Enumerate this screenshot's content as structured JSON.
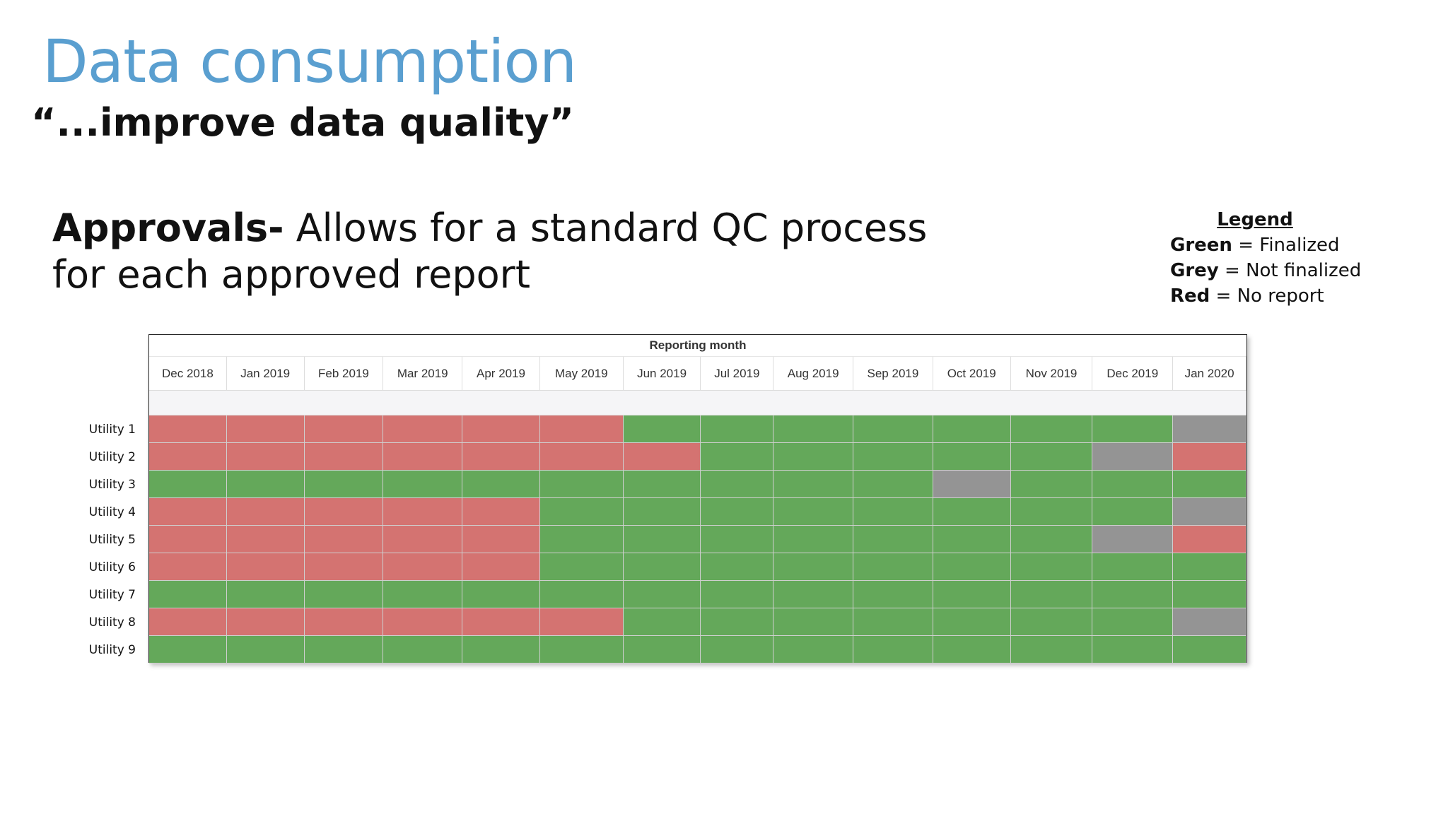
{
  "slide": {
    "title": "Data consumption",
    "subtitle": "“...improve data quality”",
    "body_bold": "Approvals-",
    "body_rest": " Allows for a standard QC process for each approved report"
  },
  "legend": {
    "title": "Legend",
    "rows": [
      {
        "key": "Green",
        "text": " = Finalized"
      },
      {
        "key": "Grey",
        "text": " = Not finalized"
      },
      {
        "key": "Red",
        "text": " = No report"
      }
    ]
  },
  "colors": {
    "green": "#64a85a",
    "grey": "#949494",
    "red": "#d47371",
    "title": "#5a9fd0"
  },
  "chart_data": {
    "type": "heatmap",
    "title": "Reporting month",
    "months": [
      "Dec 2018",
      "Jan 2019",
      "Feb 2019",
      "Mar 2019",
      "Apr 2019",
      "May 2019",
      "Jun 2019",
      "Jul 2019",
      "Aug 2019",
      "Sep 2019",
      "Oct 2019",
      "Nov 2019",
      "Dec 2019",
      "Jan 2020"
    ],
    "rows": [
      {
        "name": "Utility 1",
        "status": [
          "red",
          "red",
          "red",
          "red",
          "red",
          "red",
          "green",
          "green",
          "green",
          "green",
          "green",
          "green",
          "green",
          "grey"
        ]
      },
      {
        "name": "Utility 2",
        "status": [
          "red",
          "red",
          "red",
          "red",
          "red",
          "red",
          "red",
          "green",
          "green",
          "green",
          "green",
          "green",
          "grey",
          "red"
        ]
      },
      {
        "name": "Utility 3",
        "status": [
          "green",
          "green",
          "green",
          "green",
          "green",
          "green",
          "green",
          "green",
          "green",
          "green",
          "grey",
          "green",
          "green",
          "green"
        ]
      },
      {
        "name": "Utility 4",
        "status": [
          "red",
          "red",
          "red",
          "red",
          "red",
          "green",
          "green",
          "green",
          "green",
          "green",
          "green",
          "green",
          "green",
          "grey"
        ]
      },
      {
        "name": "Utility 5",
        "status": [
          "red",
          "red",
          "red",
          "red",
          "red",
          "green",
          "green",
          "green",
          "green",
          "green",
          "green",
          "green",
          "grey",
          "red"
        ]
      },
      {
        "name": "Utility 6",
        "status": [
          "red",
          "red",
          "red",
          "red",
          "red",
          "green",
          "green",
          "green",
          "green",
          "green",
          "green",
          "green",
          "green",
          "green"
        ]
      },
      {
        "name": "Utility 7",
        "status": [
          "green",
          "green",
          "green",
          "green",
          "green",
          "green",
          "green",
          "green",
          "green",
          "green",
          "green",
          "green",
          "green",
          "green"
        ]
      },
      {
        "name": "Utility 8",
        "status": [
          "red",
          "red",
          "red",
          "red",
          "red",
          "red",
          "green",
          "green",
          "green",
          "green",
          "green",
          "green",
          "green",
          "grey"
        ]
      },
      {
        "name": "Utility 9",
        "status": [
          "green",
          "green",
          "green",
          "green",
          "green",
          "green",
          "green",
          "green",
          "green",
          "green",
          "green",
          "green",
          "green",
          "green"
        ]
      }
    ]
  }
}
